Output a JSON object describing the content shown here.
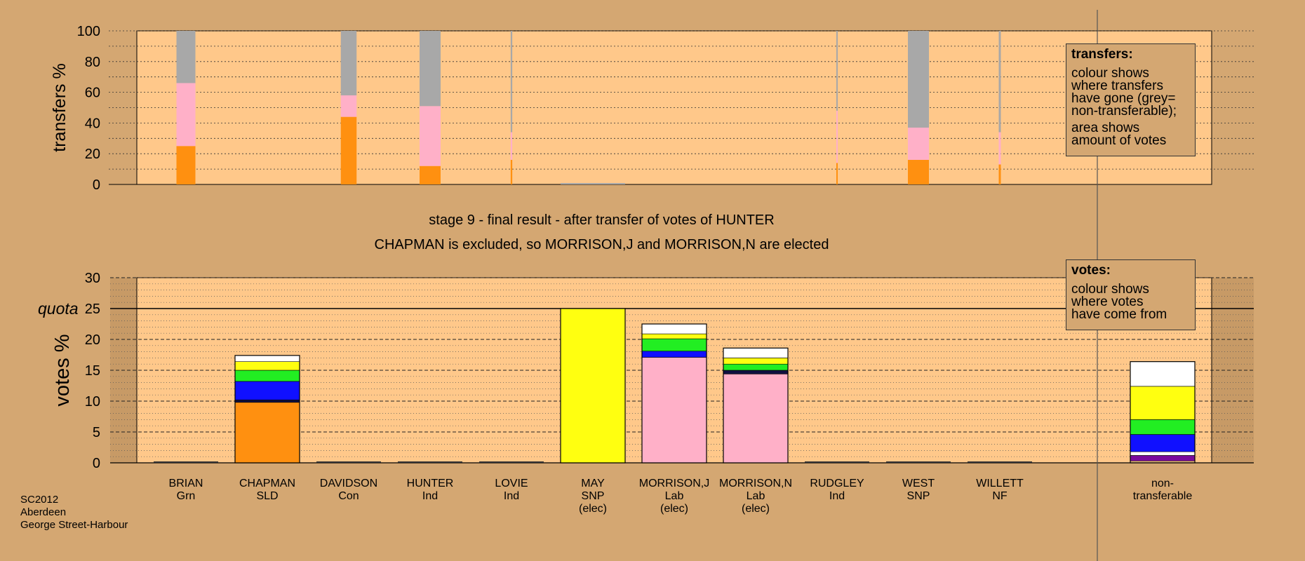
{
  "titles": {
    "stage": "stage 9 - final result - after transfer of votes of HUNTER",
    "outcome": "CHAPMAN is excluded, so MORRISON,J and MORRISON,N are elected"
  },
  "legend_transfers": {
    "title": "transfers:",
    "text1": "colour shows\nwhere transfers\nhave gone (grey=\nnon-transferable);",
    "text2": "area shows\namount of votes"
  },
  "legend_votes": {
    "title": "votes:",
    "text1": "colour shows\nwhere votes\nhave come from"
  },
  "footer": {
    "text": "SC2012\nAberdeen\nGeorge Street-Harbour"
  },
  "colors": {
    "background": "#d4a772",
    "plot_background": "#ffc88a",
    "Grn": "#22ee22",
    "SLD": "#ff9010",
    "Con": "#1010ff",
    "Ind": "#ffffff",
    "SNP": "#ffff10",
    "Lab": "#ffb0c8",
    "NF": "#7a0a9c",
    "nontransferable": "#a8a8a8",
    "stripe_dark": "#101040"
  },
  "chart_data": [
    {
      "type": "bar",
      "name": "transfers",
      "ylabel": "transfers %",
      "ylim": [
        0,
        100
      ],
      "yticks": [
        0,
        20,
        40,
        60,
        80,
        100
      ],
      "categories": [
        "BRIAN",
        "CHAPMAN",
        "DAVIDSON",
        "HUNTER",
        "LOVIE",
        "MAY",
        "MORRISON,J",
        "MORRISON,N",
        "RUDGLEY",
        "WEST",
        "WILLETT"
      ],
      "bars": [
        {
          "candidate": "BRIAN",
          "widthVotes": 1.8,
          "segments": [
            {
              "party": "SLD",
              "from": 0,
              "to": 25
            },
            {
              "party": "Lab",
              "from": 25,
              "to": 66
            },
            {
              "party": "nontransferable",
              "from": 66,
              "to": 100
            }
          ]
        },
        {
          "candidate": "DAVIDSON",
          "widthVotes": 1.5,
          "segments": [
            {
              "party": "SLD",
              "from": 0,
              "to": 44
            },
            {
              "party": "Lab",
              "from": 44,
              "to": 58
            },
            {
              "party": "nontransferable",
              "from": 58,
              "to": 100
            }
          ]
        },
        {
          "candidate": "HUNTER",
          "widthVotes": 2.0,
          "segments": [
            {
              "party": "SLD",
              "from": 0,
              "to": 12
            },
            {
              "party": "Lab",
              "from": 12,
              "to": 51
            },
            {
              "party": "nontransferable",
              "from": 51,
              "to": 100
            }
          ]
        },
        {
          "candidate": "LOVIE",
          "widthVotes": 0.15,
          "segments": [
            {
              "party": "SLD",
              "from": 0,
              "to": 16
            },
            {
              "party": "Lab",
              "from": 16,
              "to": 34
            },
            {
              "party": "nontransferable",
              "from": 34,
              "to": 100
            }
          ]
        },
        {
          "candidate": "RUDGLEY",
          "widthVotes": 0.1,
          "segments": [
            {
              "party": "SLD",
              "from": 0,
              "to": 14
            },
            {
              "party": "Lab",
              "from": 14,
              "to": 48
            },
            {
              "party": "nontransferable",
              "from": 48,
              "to": 100
            }
          ]
        },
        {
          "candidate": "WEST",
          "widthVotes": 2.0,
          "segments": [
            {
              "party": "SLD",
              "from": 0,
              "to": 16
            },
            {
              "party": "Lab",
              "from": 16,
              "to": 37
            },
            {
              "party": "nontransferable",
              "from": 37,
              "to": 100
            }
          ]
        },
        {
          "candidate": "WILLETT",
          "widthVotes": 0.2,
          "segments": [
            {
              "party": "SLD",
              "from": 0,
              "to": 13
            },
            {
              "party": "Lab",
              "from": 13,
              "to": 34
            },
            {
              "party": "nontransferable",
              "from": 34,
              "to": 100
            }
          ]
        }
      ]
    },
    {
      "type": "bar",
      "name": "votes",
      "ylabel": "votes %",
      "ylim": [
        0,
        30
      ],
      "yticks": [
        0,
        5,
        10,
        15,
        20,
        25,
        30
      ],
      "quota": 25,
      "quota_label": "quota",
      "candidates": [
        {
          "name": "BRIAN",
          "party": "Grn",
          "elected": "",
          "segments": []
        },
        {
          "name": "CHAPMAN",
          "party": "SLD",
          "elected": "",
          "segments": [
            {
              "color": "SLD",
              "from": 0,
              "to": 9.8
            },
            {
              "color": "stripe_dark",
              "from": 9.8,
              "to": 10.2
            },
            {
              "color": "Con",
              "from": 10.2,
              "to": 13.2
            },
            {
              "color": "Grn",
              "from": 13.2,
              "to": 15.0
            },
            {
              "color": "SNP",
              "from": 15.0,
              "to": 16.4
            },
            {
              "color": "Ind",
              "from": 16.4,
              "to": 17.4
            }
          ]
        },
        {
          "name": "DAVIDSON",
          "party": "Con",
          "elected": "",
          "segments": []
        },
        {
          "name": "HUNTER",
          "party": "Ind",
          "elected": "",
          "segments": []
        },
        {
          "name": "LOVIE",
          "party": "Ind",
          "elected": "",
          "segments": []
        },
        {
          "name": "MAY",
          "party": "SNP",
          "elected": "(elec)",
          "segments": [
            {
              "color": "SNP",
              "from": 0,
              "to": 25.0
            }
          ]
        },
        {
          "name": "MORRISON,J",
          "party": "Lab",
          "elected": "(elec)",
          "segments": [
            {
              "color": "Lab",
              "from": 0,
              "to": 17.1
            },
            {
              "color": "Con",
              "from": 17.1,
              "to": 18.1
            },
            {
              "color": "Grn",
              "from": 18.1,
              "to": 20.1
            },
            {
              "color": "SNP",
              "from": 20.1,
              "to": 20.9
            },
            {
              "color": "Ind",
              "from": 20.9,
              "to": 22.5
            }
          ]
        },
        {
          "name": "MORRISON,N",
          "party": "Lab",
          "elected": "(elec)",
          "segments": [
            {
              "color": "Lab",
              "from": 0,
              "to": 14.4
            },
            {
              "color": "stripe_dark",
              "from": 14.4,
              "to": 15.0
            },
            {
              "color": "Grn",
              "from": 15.0,
              "to": 16.0
            },
            {
              "color": "SNP",
              "from": 16.0,
              "to": 17.0
            },
            {
              "color": "Ind",
              "from": 17.0,
              "to": 18.6
            }
          ]
        },
        {
          "name": "RUDGLEY",
          "party": "Ind",
          "elected": "",
          "segments": []
        },
        {
          "name": "WEST",
          "party": "SNP",
          "elected": "",
          "segments": []
        },
        {
          "name": "WILLETT",
          "party": "NF",
          "elected": "",
          "segments": []
        }
      ],
      "nontransferable": {
        "label_line1": "non-",
        "label_line2": "transferable",
        "segments": [
          {
            "color": "NF",
            "from": 0.3,
            "to": 1.2
          },
          {
            "color": "Ind",
            "from": 1.2,
            "to": 1.8
          },
          {
            "color": "Con",
            "from": 1.8,
            "to": 4.6
          },
          {
            "color": "Grn",
            "from": 4.6,
            "to": 7.0
          },
          {
            "color": "SNP",
            "from": 7.0,
            "to": 12.4
          },
          {
            "color": "Ind",
            "from": 12.4,
            "to": 16.4
          }
        ]
      }
    }
  ]
}
